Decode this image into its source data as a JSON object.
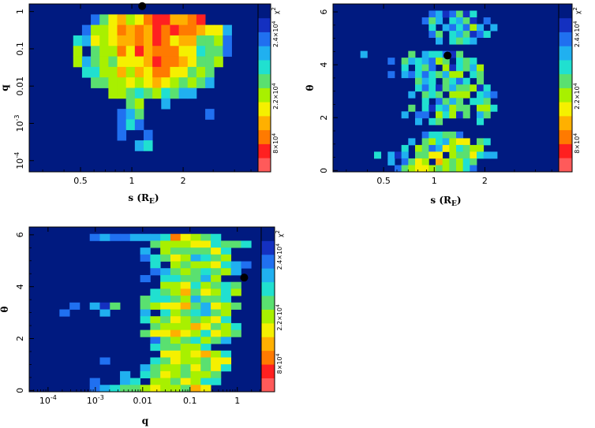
{
  "colors": {
    "background": "#001a80",
    "scale": [
      "#ff5a5a",
      "#ff2020",
      "#ff7a00",
      "#ffb000",
      "#f5f000",
      "#a8f000",
      "#5ae070",
      "#20e0d0",
      "#20b0f0",
      "#2070f0",
      "#1430c0",
      "#001a80"
    ],
    "marker": "#000000"
  },
  "chart_data": [
    {
      "id": "s_vs_q",
      "type": "heatmap",
      "title": "",
      "xlabel": "s (R",
      "xlabel_sub": "E",
      "xlabel_close": ")",
      "ylabel": "q",
      "xscale": "log",
      "yscale": "log",
      "xticks": [
        {
          "v": 0.5,
          "label": "0.5"
        },
        {
          "v": 1,
          "label": "1"
        },
        {
          "v": 2,
          "label": "2"
        }
      ],
      "yticks": [
        {
          "v": 0.0001,
          "label": "10",
          "sup": "-4"
        },
        {
          "v": 0.001,
          "label": "10",
          "sup": "-3"
        },
        {
          "v": 0.01,
          "label": "0.01"
        },
        {
          "v": 0.1,
          "label": "0.1"
        },
        {
          "v": 1,
          "label": "1"
        }
      ],
      "colorbar": {
        "label": "χ",
        "label_sup": "2",
        "ticks": [
          {
            "pos": 0.17,
            "text": "8×10",
            "sup": "4"
          },
          {
            "pos": 0.45,
            "text": "2.2×10",
            "sup": "4"
          },
          {
            "pos": 0.82,
            "text": "2.4×10",
            "sup": "4"
          }
        ]
      },
      "best_fit": {
        "x": 1.15,
        "y": 1.4
      },
      "color_grid_rows_top_to_bottom": [
        "BBBBBBBBBBBBBBBBBBBBBBBBBB",
        "BBBBBBB9643542113321BBBBBB",
        "BBBBBB95542323121223448BBB",
        "BBBBB784543323124336659BBB",
        "BBBBB5B6552413222447669BBB",
        "BBBBB58656444312234665BBBB",
        "BBBBBB775535342244656BBBBB",
        "BBBBBBB66554543456568BBBBB",
        "BBBBBBBBB5567657688BBBBBBB",
        "BBBBBBBBBBB65BB8BBBBBBBBBB",
        "BBBBBBBBBB986BBBBBBB9BBBBB",
        "BBBBBBBBBB979BBBBBBBBBBBBB",
        "BBBBBBBBBB9BB9BBBBBBBBBBBB",
        "BBBBBBBBBBBB87BBBBBBBBBBBB",
        "BBBBBBBBBBBBBBBBBBBBBBBBBB",
        "BBBBBBBBBBBBBBBBBBBBBBBBBB"
      ]
    },
    {
      "id": "s_vs_theta",
      "type": "heatmap",
      "title": "",
      "xlabel": "s (R",
      "xlabel_sub": "E",
      "xlabel_close": ")",
      "ylabel": "θ",
      "xscale": "log",
      "yscale": "linear",
      "xticks": [
        {
          "v": 0.5,
          "label": "0.5"
        },
        {
          "v": 1,
          "label": "1"
        },
        {
          "v": 2,
          "label": "2"
        }
      ],
      "yticks": [
        {
          "v": 0,
          "label": "0"
        },
        {
          "v": 2,
          "label": "2"
        },
        {
          "v": 4,
          "label": "4"
        },
        {
          "v": 6,
          "label": "6"
        }
      ],
      "colorbar": {
        "label": "χ",
        "label_sup": "2",
        "ticks": [
          {
            "pos": 0.17,
            "text": "8×10",
            "sup": "4"
          },
          {
            "pos": 0.45,
            "text": "2.2×10",
            "sup": "4"
          },
          {
            "pos": 0.82,
            "text": "2.4×10",
            "sup": "4"
          }
        ]
      },
      "best_fit": {
        "x": 1.2,
        "y": 4.35
      },
      "color_grid_rows_top_to_bottom": [
        "BBBBBBBBBBBBBBBBBBBBBBBBBBBBBBBBB",
        "BBBBBBBBBBBBBB98A96A7BBBBBBBBBBBB",
        "BBBBBBBBBBBBB968B786AB9BBBBBBBBBB",
        "BBBBBBBBBBBBBB7B897958B8BBBBBBBBB",
        "BBBBBBBBBBBBBB96B786A97BBBBBBBBBB",
        "BBBBBBBBBBBBBBB8B7678BBBBBBBBBBBB",
        "BBBBBBBBBBBBBBBBBBBBBBBBBBBBBBBBB",
        "BBBB8BBBBBB6B8779A6BBBBBBBBBBBBBB",
        "BBBBBBBB9B6878956B767BBBBBBBBBBBB",
        "BBBBBBBBBB7B769B5A7685BBBBBBBBBBB",
        "BBBBBBBB9B897976855B76BBBBBBBBBBB",
        "BBBBBBBBBBBB687B6797B6BBBBBBBBBBB",
        "BBBBBBBBBBBB797A68665A7BBBBBBBBBB",
        "BBBBBBBBBBB8B676B555B789BBBBBBBBB",
        "BBBBBBBBBBBBB7B9686B776BBBBBBBBBB",
        "BBBBBBBBBBB6B7A78566B557BBBBBBBBB",
        "BBBBBBBBBB8B99B575A6B86BBBBBBBBBB",
        "BBBBBBBBBBBB8B76BBBBB7BBBBBBBBBBB",
        "BBBBBBBBBBBBBBBBBBBBBBBBBBBBBBBBB",
        "BBBBBBBBBBBBB977669BBBBBBBBBBBBBB",
        "BBBBBBBBBBB8B6578544B67BBBBBBBBBB",
        "BBBBBBBBBB7B5698457655BBBBBBBBBBB",
        "BBBBBB7B8A8B6644B5664788BBBBBBBBB",
        "BBBBBBBB8B9645B356576BBBBBBBBBBBB",
        "BBBBBBBBB965445656579BBBBBBBBBBBB"
      ]
    },
    {
      "id": "q_vs_theta",
      "type": "heatmap",
      "title": "",
      "xlabel": "q",
      "xlabel_sub": "",
      "xlabel_close": "",
      "ylabel": "θ",
      "xscale": "log",
      "yscale": "linear",
      "xticks": [
        {
          "v": 0.0001,
          "label": "10",
          "sup": "-4"
        },
        {
          "v": 0.001,
          "label": "10",
          "sup": "-3"
        },
        {
          "v": 0.01,
          "label": "0.01"
        },
        {
          "v": 0.1,
          "label": "0.1"
        },
        {
          "v": 1,
          "label": "1"
        }
      ],
      "yticks": [
        {
          "v": 0,
          "label": "0"
        },
        {
          "v": 2,
          "label": "2"
        },
        {
          "v": 4,
          "label": "4"
        },
        {
          "v": 6,
          "label": "6"
        }
      ],
      "colorbar": {
        "label": "χ",
        "label_sup": "2",
        "ticks": [
          {
            "pos": 0.17,
            "text": "8×10",
            "sup": "4"
          },
          {
            "pos": 0.45,
            "text": "2.2×10",
            "sup": "4"
          },
          {
            "pos": 0.82,
            "text": "2.4×10",
            "sup": "4"
          }
        ]
      },
      "best_fit": {
        "x": 1.4,
        "y": 4.35
      },
      "color_grid_rows_top_to_bottom": [
        "BBBBBBBBBBBBBBBBBBBBBBB",
        "BBBBBB9899888724567B",
        "BBBBBBBBBBBB6555447667",
        "BBBBBBBBBBB8B5666647B",
        "BBBBBBBBBBB976458765",
        "BBBBBBBBBBBB7B56554789",
        "BBBBBBBBBBBB986567658",
        "BBBBBBBBBBB9B776685",
        "BBBBBBBBBBBBB55475676",
        "BBBBBBBBBBBB765364575",
        "BBBBBBBBBBB677658667",
        "BBBB9B8A6BB6544368456",
        "BBB9BBB8BBB8B7567865",
        "BBBBBBBBBBB756456547",
        "BBBBBBBBBBBB655534657",
        "BBBBBBBBBBB6443457456",
        "BBBBBBBBBBBB96567568",
        "BBBBBBBBBBBB766557",
        "BBBBBBBBBBBBB4454357",
        "BBBBBBB9BBBB76455644",
        "BBBBBBBBBBB865564647",
        "BBBBBBBBB8B76456556",
        "BBBBBB9BB87B5564577",
        "BBBBBB987665455634"
      ]
    }
  ]
}
